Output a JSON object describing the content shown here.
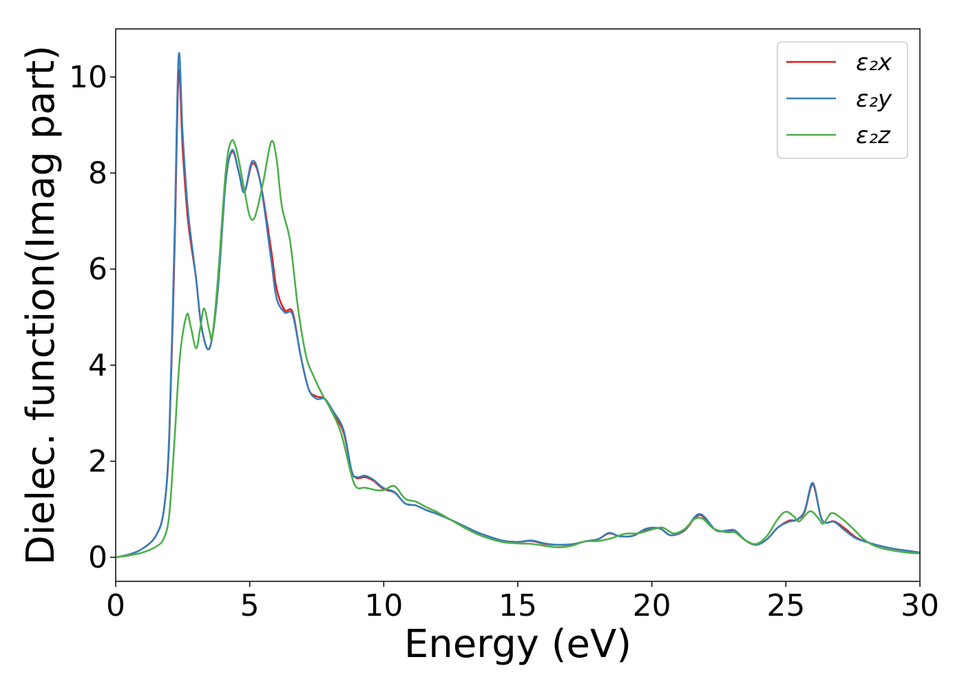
{
  "chart_data": {
    "type": "line",
    "xlabel": "Energy (eV)",
    "ylabel": "Dielec. function(Imag part)",
    "xlim": [
      0,
      30
    ],
    "ylim": [
      -0.5,
      11
    ],
    "xticks": [
      "0",
      "5",
      "10",
      "15",
      "20",
      "25",
      "30"
    ],
    "yticks": [
      "0",
      "2",
      "4",
      "6",
      "8",
      "10"
    ],
    "grid": false,
    "legend_position": "top-right",
    "series": [
      {
        "name": "ε₂x",
        "color": "#e41a1c",
        "points": [
          [
            0,
            0
          ],
          [
            0.5,
            0.06
          ],
          [
            1.0,
            0.18
          ],
          [
            1.5,
            0.45
          ],
          [
            1.8,
            1.0
          ],
          [
            2.0,
            2.5
          ],
          [
            2.2,
            6.5
          ],
          [
            2.35,
            10.1
          ],
          [
            2.5,
            8.5
          ],
          [
            2.7,
            7.0
          ],
          [
            3.0,
            5.8
          ],
          [
            3.2,
            4.8
          ],
          [
            3.5,
            4.35
          ],
          [
            3.8,
            5.5
          ],
          [
            4.1,
            7.8
          ],
          [
            4.35,
            8.45
          ],
          [
            4.6,
            8.0
          ],
          [
            4.8,
            7.6
          ],
          [
            5.1,
            8.2
          ],
          [
            5.4,
            7.8
          ],
          [
            5.8,
            6.4
          ],
          [
            6.0,
            5.6
          ],
          [
            6.3,
            5.15
          ],
          [
            6.6,
            5.1
          ],
          [
            6.9,
            4.2
          ],
          [
            7.2,
            3.5
          ],
          [
            7.5,
            3.35
          ],
          [
            7.8,
            3.3
          ],
          [
            8.1,
            3.0
          ],
          [
            8.5,
            2.6
          ],
          [
            8.8,
            1.8
          ],
          [
            9.0,
            1.65
          ],
          [
            9.3,
            1.67
          ],
          [
            9.6,
            1.6
          ],
          [
            10.0,
            1.42
          ],
          [
            10.4,
            1.35
          ],
          [
            10.8,
            1.12
          ],
          [
            11.2,
            1.08
          ],
          [
            11.6,
            0.98
          ],
          [
            12.0,
            0.9
          ],
          [
            12.5,
            0.78
          ],
          [
            13.0,
            0.65
          ],
          [
            13.5,
            0.52
          ],
          [
            14.0,
            0.42
          ],
          [
            14.5,
            0.34
          ],
          [
            15.0,
            0.32
          ],
          [
            15.5,
            0.34
          ],
          [
            16.0,
            0.28
          ],
          [
            16.5,
            0.26
          ],
          [
            17.0,
            0.27
          ],
          [
            17.5,
            0.33
          ],
          [
            18.0,
            0.38
          ],
          [
            18.4,
            0.5
          ],
          [
            18.8,
            0.44
          ],
          [
            19.3,
            0.45
          ],
          [
            19.8,
            0.58
          ],
          [
            20.3,
            0.6
          ],
          [
            20.7,
            0.46
          ],
          [
            21.2,
            0.55
          ],
          [
            21.6,
            0.82
          ],
          [
            21.8,
            0.88
          ],
          [
            22.0,
            0.8
          ],
          [
            22.4,
            0.56
          ],
          [
            22.8,
            0.55
          ],
          [
            23.1,
            0.55
          ],
          [
            23.5,
            0.35
          ],
          [
            23.9,
            0.26
          ],
          [
            24.3,
            0.38
          ],
          [
            24.7,
            0.62
          ],
          [
            25.1,
            0.76
          ],
          [
            25.4,
            0.78
          ],
          [
            25.7,
            0.95
          ],
          [
            26.0,
            1.52
          ],
          [
            26.3,
            0.85
          ],
          [
            26.5,
            0.72
          ],
          [
            26.8,
            0.75
          ],
          [
            27.2,
            0.6
          ],
          [
            27.6,
            0.42
          ],
          [
            28.0,
            0.32
          ],
          [
            28.5,
            0.24
          ],
          [
            29.0,
            0.18
          ],
          [
            29.5,
            0.14
          ],
          [
            30.0,
            0.1
          ]
        ]
      },
      {
        "name": "ε₂y",
        "color": "#377eb8",
        "points": [
          [
            0,
            0
          ],
          [
            0.5,
            0.06
          ],
          [
            1.0,
            0.18
          ],
          [
            1.5,
            0.45
          ],
          [
            1.8,
            1.0
          ],
          [
            2.0,
            2.6
          ],
          [
            2.2,
            6.8
          ],
          [
            2.35,
            10.45
          ],
          [
            2.5,
            8.8
          ],
          [
            2.7,
            7.2
          ],
          [
            3.0,
            5.8
          ],
          [
            3.2,
            4.8
          ],
          [
            3.5,
            4.35
          ],
          [
            3.8,
            5.5
          ],
          [
            4.1,
            7.8
          ],
          [
            4.35,
            8.48
          ],
          [
            4.6,
            8.0
          ],
          [
            4.8,
            7.6
          ],
          [
            5.1,
            8.25
          ],
          [
            5.4,
            7.8
          ],
          [
            5.8,
            6.2
          ],
          [
            6.0,
            5.4
          ],
          [
            6.3,
            5.1
          ],
          [
            6.6,
            5.05
          ],
          [
            6.9,
            4.2
          ],
          [
            7.2,
            3.5
          ],
          [
            7.5,
            3.3
          ],
          [
            7.8,
            3.3
          ],
          [
            8.1,
            3.05
          ],
          [
            8.5,
            2.65
          ],
          [
            8.8,
            1.8
          ],
          [
            9.0,
            1.67
          ],
          [
            9.3,
            1.7
          ],
          [
            9.6,
            1.62
          ],
          [
            10.0,
            1.44
          ],
          [
            10.4,
            1.36
          ],
          [
            10.8,
            1.12
          ],
          [
            11.2,
            1.08
          ],
          [
            11.6,
            0.98
          ],
          [
            12.0,
            0.9
          ],
          [
            12.5,
            0.78
          ],
          [
            13.0,
            0.65
          ],
          [
            13.5,
            0.52
          ],
          [
            14.0,
            0.42
          ],
          [
            14.5,
            0.34
          ],
          [
            15.0,
            0.32
          ],
          [
            15.5,
            0.35
          ],
          [
            16.0,
            0.29
          ],
          [
            16.5,
            0.26
          ],
          [
            17.0,
            0.27
          ],
          [
            17.5,
            0.33
          ],
          [
            18.0,
            0.38
          ],
          [
            18.4,
            0.51
          ],
          [
            18.8,
            0.44
          ],
          [
            19.3,
            0.45
          ],
          [
            19.8,
            0.6
          ],
          [
            20.3,
            0.6
          ],
          [
            20.7,
            0.46
          ],
          [
            21.2,
            0.56
          ],
          [
            21.6,
            0.84
          ],
          [
            21.8,
            0.9
          ],
          [
            22.0,
            0.82
          ],
          [
            22.4,
            0.56
          ],
          [
            22.8,
            0.56
          ],
          [
            23.1,
            0.56
          ],
          [
            23.5,
            0.35
          ],
          [
            23.9,
            0.26
          ],
          [
            24.3,
            0.38
          ],
          [
            24.7,
            0.62
          ],
          [
            25.1,
            0.74
          ],
          [
            25.4,
            0.78
          ],
          [
            25.7,
            0.97
          ],
          [
            26.0,
            1.55
          ],
          [
            26.3,
            0.85
          ],
          [
            26.5,
            0.72
          ],
          [
            26.8,
            0.74
          ],
          [
            27.2,
            0.56
          ],
          [
            27.6,
            0.4
          ],
          [
            28.0,
            0.32
          ],
          [
            28.5,
            0.24
          ],
          [
            29.0,
            0.18
          ],
          [
            29.5,
            0.14
          ],
          [
            30.0,
            0.1
          ]
        ]
      },
      {
        "name": "ε₂z",
        "color": "#4daf4a",
        "points": [
          [
            0,
            0
          ],
          [
            0.5,
            0.04
          ],
          [
            1.0,
            0.1
          ],
          [
            1.5,
            0.22
          ],
          [
            1.8,
            0.4
          ],
          [
            2.0,
            0.9
          ],
          [
            2.2,
            2.5
          ],
          [
            2.4,
            4.2
          ],
          [
            2.65,
            5.05
          ],
          [
            2.8,
            4.8
          ],
          [
            3.0,
            4.35
          ],
          [
            3.15,
            4.75
          ],
          [
            3.3,
            5.18
          ],
          [
            3.5,
            4.7
          ],
          [
            3.6,
            4.6
          ],
          [
            3.8,
            5.7
          ],
          [
            4.1,
            8.0
          ],
          [
            4.3,
            8.65
          ],
          [
            4.5,
            8.5
          ],
          [
            4.8,
            7.65
          ],
          [
            5.0,
            7.1
          ],
          [
            5.2,
            7.1
          ],
          [
            5.5,
            7.8
          ],
          [
            5.8,
            8.65
          ],
          [
            6.0,
            8.3
          ],
          [
            6.2,
            7.3
          ],
          [
            6.5,
            6.6
          ],
          [
            6.8,
            5.2
          ],
          [
            7.1,
            4.2
          ],
          [
            7.4,
            3.75
          ],
          [
            7.7,
            3.4
          ],
          [
            8.0,
            3.1
          ],
          [
            8.4,
            2.6
          ],
          [
            8.8,
            1.7
          ],
          [
            9.0,
            1.45
          ],
          [
            9.3,
            1.45
          ],
          [
            9.7,
            1.4
          ],
          [
            10.0,
            1.4
          ],
          [
            10.4,
            1.48
          ],
          [
            10.8,
            1.22
          ],
          [
            11.2,
            1.16
          ],
          [
            11.6,
            1.04
          ],
          [
            12.0,
            0.94
          ],
          [
            12.5,
            0.78
          ],
          [
            13.0,
            0.62
          ],
          [
            13.5,
            0.48
          ],
          [
            14.0,
            0.38
          ],
          [
            14.5,
            0.31
          ],
          [
            15.0,
            0.29
          ],
          [
            15.5,
            0.28
          ],
          [
            16.0,
            0.24
          ],
          [
            16.5,
            0.21
          ],
          [
            17.0,
            0.24
          ],
          [
            17.5,
            0.33
          ],
          [
            18.0,
            0.34
          ],
          [
            18.5,
            0.4
          ],
          [
            19.0,
            0.49
          ],
          [
            19.5,
            0.5
          ],
          [
            20.0,
            0.58
          ],
          [
            20.4,
            0.62
          ],
          [
            20.8,
            0.5
          ],
          [
            21.2,
            0.58
          ],
          [
            21.6,
            0.8
          ],
          [
            21.9,
            0.8
          ],
          [
            22.3,
            0.6
          ],
          [
            22.8,
            0.52
          ],
          [
            23.1,
            0.52
          ],
          [
            23.5,
            0.35
          ],
          [
            23.9,
            0.28
          ],
          [
            24.3,
            0.45
          ],
          [
            24.7,
            0.8
          ],
          [
            25.0,
            0.95
          ],
          [
            25.3,
            0.85
          ],
          [
            25.5,
            0.75
          ],
          [
            25.9,
            0.96
          ],
          [
            26.2,
            0.82
          ],
          [
            26.4,
            0.7
          ],
          [
            26.7,
            0.92
          ],
          [
            27.1,
            0.8
          ],
          [
            27.5,
            0.6
          ],
          [
            27.9,
            0.38
          ],
          [
            28.3,
            0.24
          ],
          [
            28.8,
            0.16
          ],
          [
            29.5,
            0.1
          ],
          [
            30.0,
            0.08
          ]
        ]
      }
    ]
  }
}
